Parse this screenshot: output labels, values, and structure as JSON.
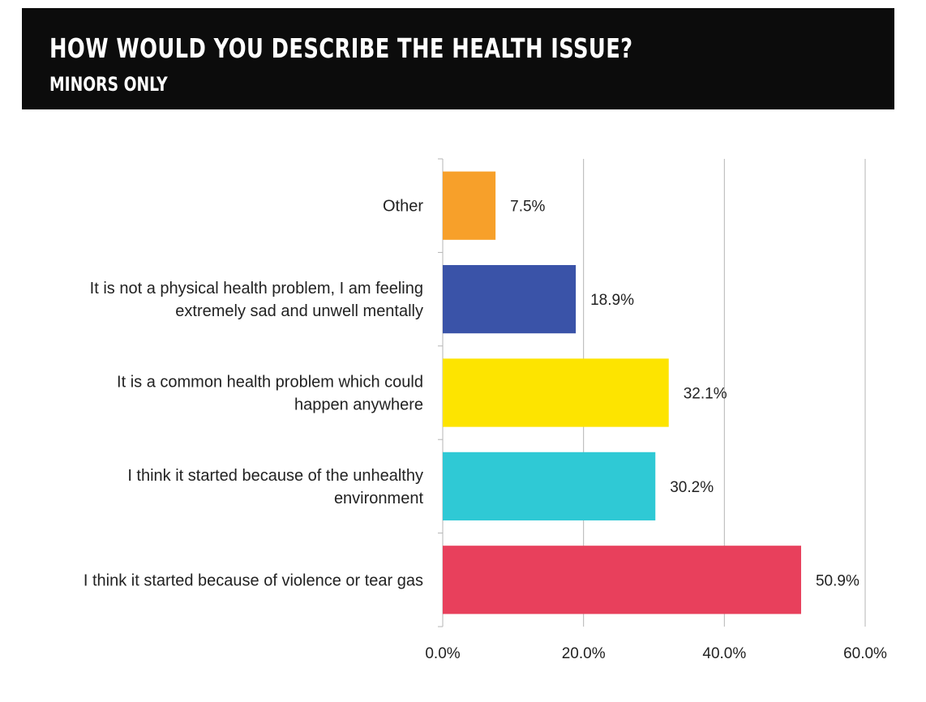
{
  "header": {
    "title": "HOW WOULD YOU DESCRIBE THE HEALTH ISSUE?",
    "subtitle": "MINORS ONLY"
  },
  "chart_data": {
    "type": "bar",
    "orientation": "horizontal",
    "categories": [
      [
        "Other"
      ],
      [
        "It is not a physical health problem, I am feeling",
        "extremely sad and unwell mentally"
      ],
      [
        "It is a common health problem which could",
        "happen anywhere"
      ],
      [
        "I think it started because of the unhealthy",
        "environment"
      ],
      [
        "I think it started because of violence or tear gas"
      ]
    ],
    "values": [
      7.5,
      18.9,
      32.1,
      30.2,
      50.9
    ],
    "value_labels": [
      "7.5%",
      "18.9%",
      "32.1%",
      "30.2%",
      "50.9%"
    ],
    "colors": [
      "#f7a02a",
      "#3a53a8",
      "#fde400",
      "#2fc9d5",
      "#e8405c"
    ],
    "xlim": [
      0,
      60
    ],
    "xticks": [
      0,
      20,
      40,
      60
    ],
    "xtick_labels": [
      "0.0%",
      "20.0%",
      "40.0%",
      "60.0%"
    ],
    "grid": "vertical",
    "legend": "none"
  }
}
